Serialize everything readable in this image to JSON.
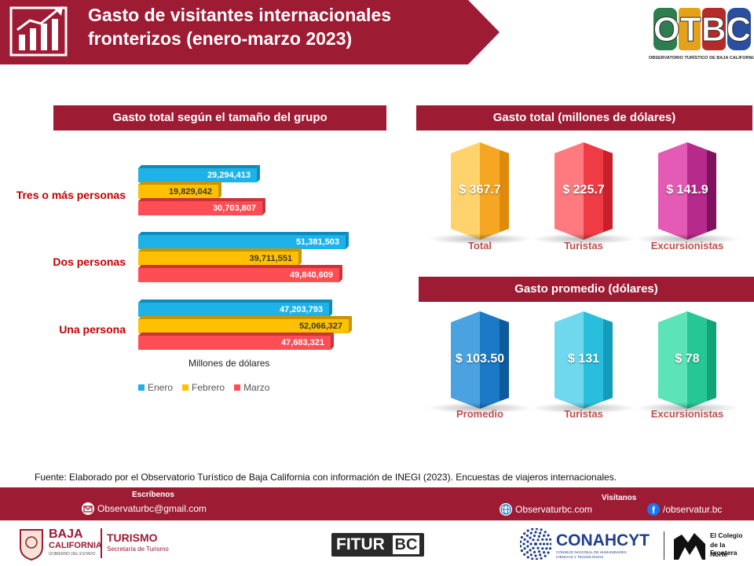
{
  "header": {
    "title_line1": "Gasto de visitantes internacionales",
    "title_line2": "fronterizos (enero-marzo 2023)",
    "logo_text": "OTBC",
    "logo_caption": "OBSERVATORIO TURÍSTICO DE BAJA CALIFORNIA"
  },
  "sections": {
    "group_spend": "Gasto total según el tamaño del grupo",
    "total_spend": "Gasto total (millones de dólares)",
    "avg_spend": "Gasto promedio (dólares)"
  },
  "colors": {
    "brand": "#9e1b34",
    "enero": "#1fb2e8",
    "febrero": "#ffc000",
    "marzo": "#ff4d55",
    "category_label": "#c00000",
    "column_label": "#c0504d"
  },
  "chart_data": [
    {
      "type": "bar",
      "orientation": "horizontal",
      "categories": [
        "Tres o más personas",
        "Dos personas",
        "Una persona"
      ],
      "series": [
        {
          "name": "Enero",
          "values": [
            29294413,
            51381503,
            47203793
          ],
          "labels": [
            "29,294,413",
            "51,381,503",
            "47,203,793"
          ]
        },
        {
          "name": "Febrero",
          "values": [
            19829042,
            39711551,
            52066327
          ],
          "labels": [
            "19,829,042",
            "39,711,551",
            "52,066,327"
          ]
        },
        {
          "name": "Marzo",
          "values": [
            30703807,
            49840609,
            47683321
          ],
          "labels": [
            "30,703,807",
            "49,840,609",
            "47,683,321"
          ]
        }
      ],
      "xlabel": "Millones de dólares",
      "xlim": [
        0,
        60000000
      ],
      "legend": "bottom",
      "grid": false
    },
    {
      "type": "bar",
      "categories": [
        "Total",
        "Turistas",
        "Excursionistas"
      ],
      "values": [
        367.7,
        225.7,
        141.9
      ],
      "labels": [
        "$ 367.7",
        "$ 225.7",
        "$ 141.9"
      ]
    },
    {
      "type": "bar",
      "categories": [
        "Promedio",
        "Turistas",
        "Excursionistas"
      ],
      "values": [
        103.5,
        131,
        78
      ],
      "labels": [
        "$ 103.50",
        "$ 131",
        "$ 78"
      ]
    }
  ],
  "footer": {
    "source": "Fuente: Elaborado por el Observatorio Turístico de Baja California con información de INEGI (2023). Encuestas de viajeros internacionales.",
    "write_heading": "Escríbenos",
    "email": "Observaturbc@gmail.com",
    "visit_heading": "Visítanos",
    "website": "Observaturbc.com",
    "facebook": "/observatur.bc"
  },
  "logos": {
    "baja_line1": "BAJA",
    "baja_line2": "CALIFORNIA",
    "baja_line3": "GOBIERNO DEL ESTADO",
    "turismo": "TURISMO",
    "turismo_sub": "Secretaría de Turismo",
    "fitur_a": "FITUR",
    "fitur_b": "BC",
    "conahcyt": "CONAHCYT",
    "conahcyt_sub1": "CONSEJO NACIONAL DE HUMANIDADES",
    "conahcyt_sub2": "CIENCIAS Y TECNOLOGÍAS",
    "colef_line1": "El Colegio",
    "colef_line2": "de la Frontera",
    "colef_line3": "Norte"
  }
}
